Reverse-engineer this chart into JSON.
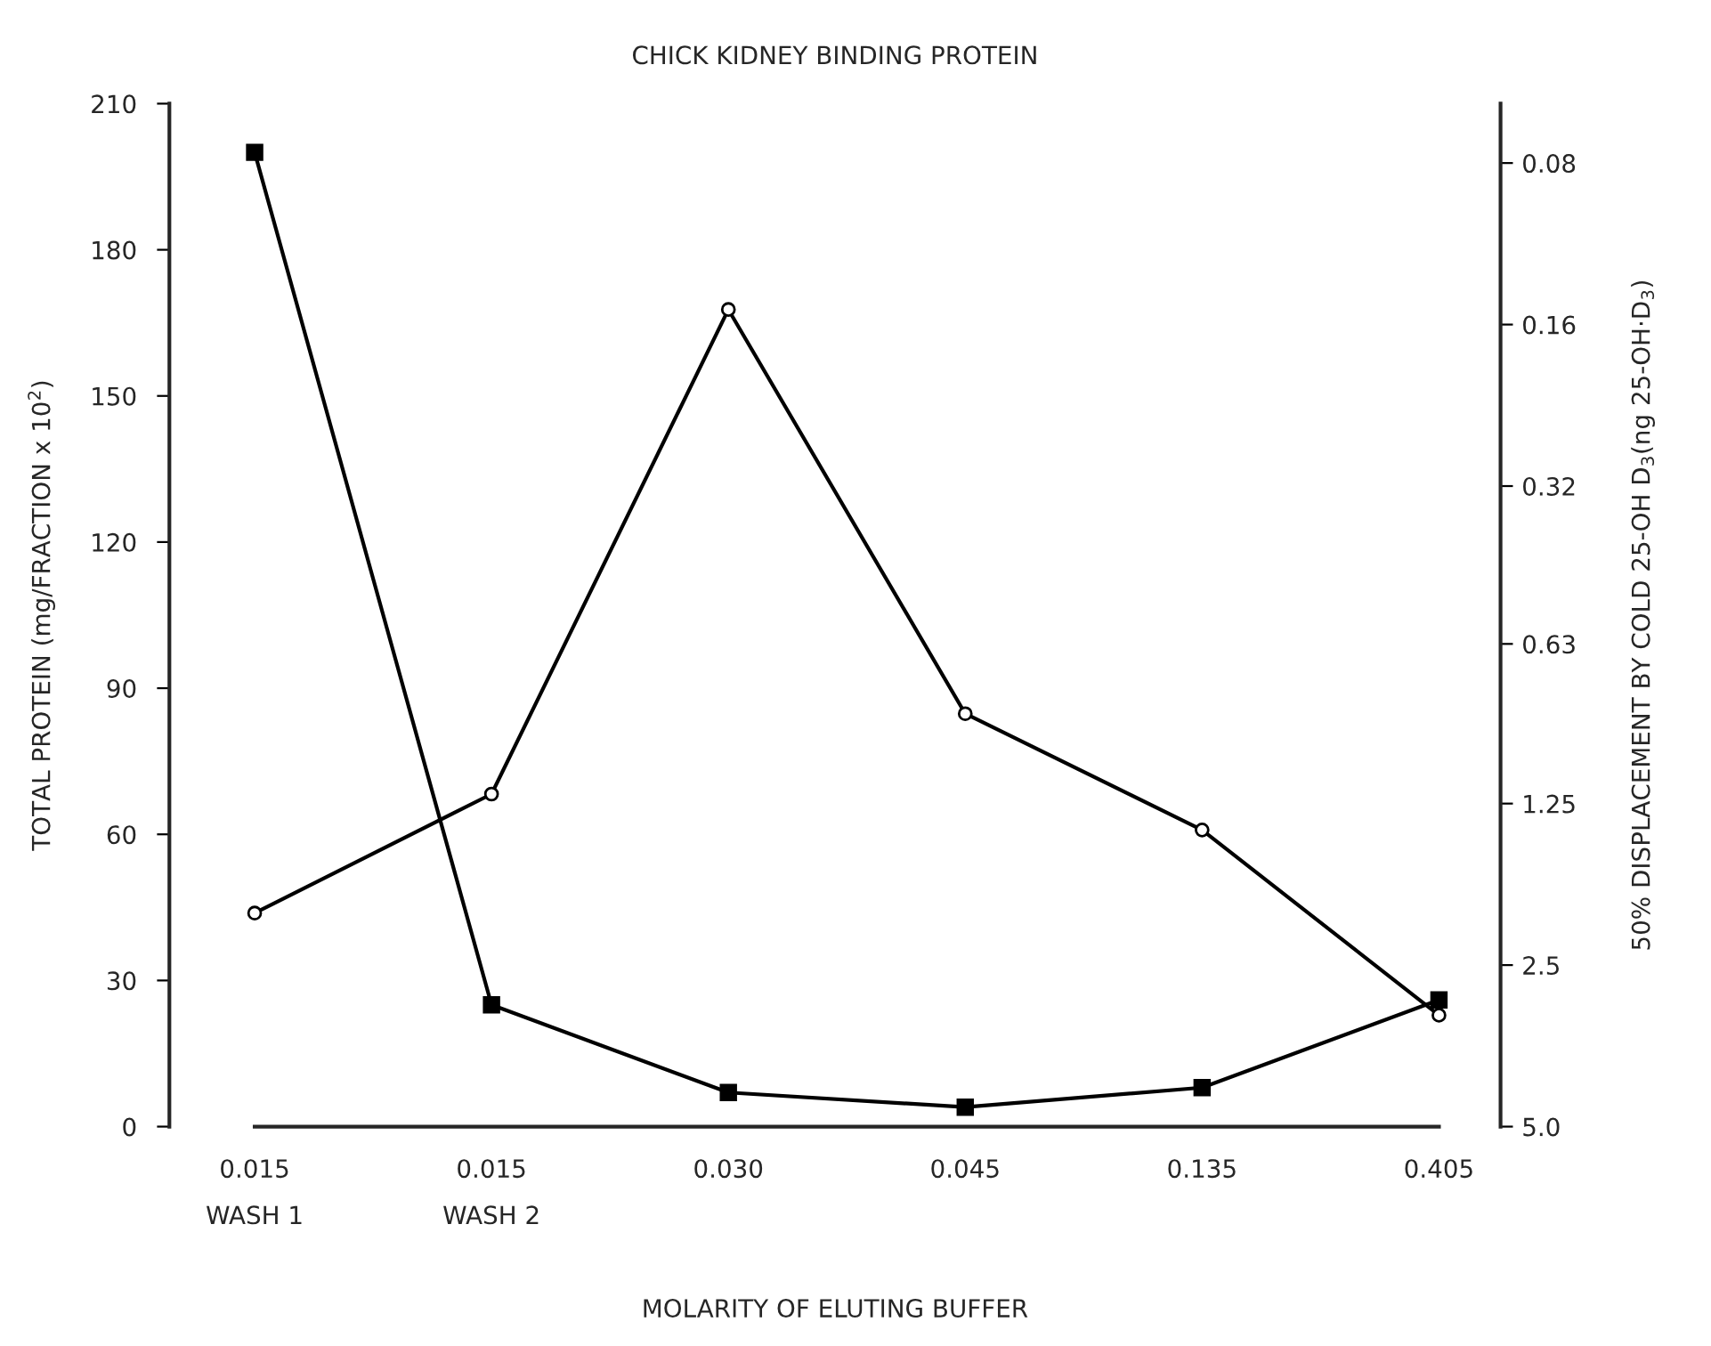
{
  "chart_data": {
    "type": "line",
    "title": "CHICK KIDNEY BINDING PROTEIN",
    "xlabel": "MOLARITY OF ELUTING BUFFER",
    "ylabel": "TOTAL PROTEIN (mg/FRACTION x 10$^{2}$)",
    "y2label": "50% DISPLACEMENT BY COLD 25-OH D$_{3}$(ng 25-OH·D$_{3}$)",
    "categories": [
      "0.015\nWASH 1",
      "0.015\nWASH 2",
      "0.030",
      "0.045",
      "0.135",
      "0.405"
    ],
    "series": [
      {
        "color": "#000000",
        "marker": "square",
        "values": [
          200,
          25,
          7,
          4,
          8,
          26
        ]
      },
      {
        "color": "#000000",
        "marker": "circle",
        "axis": "y2",
        "values": [
          2.0,
          1.2,
          0.15,
          0.85,
          1.4,
          3.1
        ]
      }
    ],
    "ylim": [
      0,
      210
    ],
    "yticks": [
      0,
      30,
      60,
      90,
      120,
      150,
      180,
      210
    ],
    "y2lim": [
      5.0,
      0.062
    ],
    "log": "y2",
    "y2ticks": [
      {
        "value": 0.08,
        "label": "0.08"
      },
      0.16,
      0.32,
      0.63,
      1.25,
      2.5,
      {
        "value": 5.0,
        "label": "5.0"
      }
    ],
    "grid": false,
    "legend": false,
    "line_style": "solid"
  }
}
